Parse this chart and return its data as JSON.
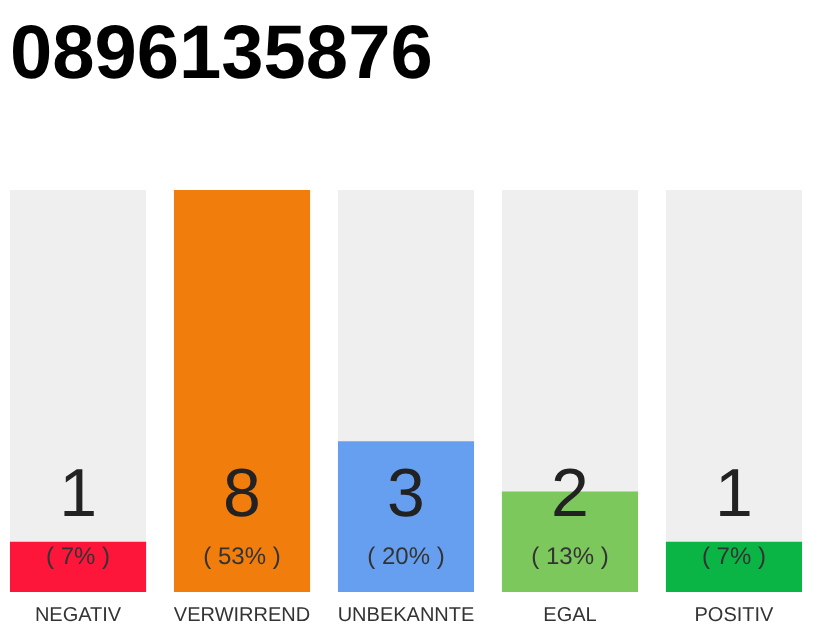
{
  "chart_data": {
    "type": "bar",
    "title": "0896135876",
    "categories": [
      "NEGATIV",
      "VERWIRREND",
      "UNBEKANNTE",
      "EGAL",
      "POSITIV"
    ],
    "values": [
      1,
      8,
      3,
      2,
      1
    ],
    "colors": [
      "#fe163a",
      "#f07d0c",
      "#679ff0",
      "#7cc85c",
      "#0bb545"
    ],
    "data_labels": true,
    "annotations": [
      "( 7% )",
      "( 53% )",
      "( 20% )",
      "( 13% )",
      "( 7% )"
    ],
    "grid": false,
    "tick_labels": "x"
  }
}
